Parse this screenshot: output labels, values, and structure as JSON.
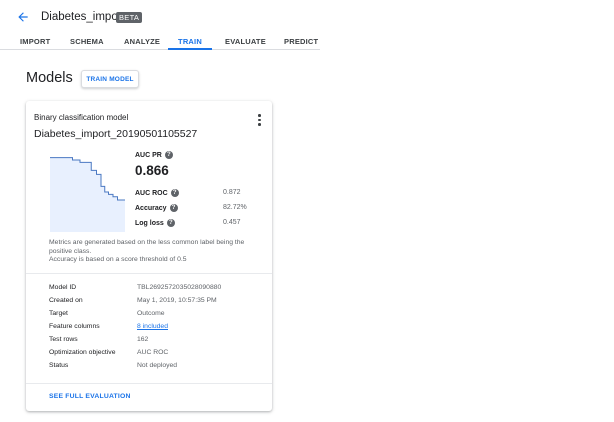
{
  "header": {
    "title": "Diabetes_import",
    "badge": "BETA",
    "back_icon": "arrow-back-icon"
  },
  "tabs": [
    {
      "label": "IMPORT",
      "active": false
    },
    {
      "label": "SCHEMA",
      "active": false
    },
    {
      "label": "ANALYZE",
      "active": false
    },
    {
      "label": "TRAIN",
      "active": true
    },
    {
      "label": "EVALUATE",
      "active": false
    },
    {
      "label": "PREDICT",
      "active": false
    }
  ],
  "colors": {
    "accent": "#1a73e8",
    "curve_fill": "#e8f0fe",
    "curve_line": "#4a78c2"
  },
  "page": {
    "heading": "Models",
    "train_button": "TRAIN MODEL"
  },
  "model_card": {
    "type": "Binary classification model",
    "name": "Diabetes_import_20190501105527",
    "more_icon": "more-vert-icon",
    "primary_metric": {
      "label": "AUC PR",
      "value": "0.866"
    },
    "metrics": [
      {
        "label": "AUC ROC",
        "value": "0.872"
      },
      {
        "label": "Accuracy",
        "value": "82.72%"
      },
      {
        "label": "Log loss",
        "value": "0.457"
      }
    ],
    "note_line1": "Metrics are generated based on the less common label being the positive class.",
    "note_line2": "Accuracy is based on a score threshold of 0.5",
    "details": [
      {
        "key": "Model ID",
        "value": "TBL2692572035028090880",
        "link": false
      },
      {
        "key": "Created on",
        "value": "May 1, 2019, 10:57:35 PM",
        "link": false
      },
      {
        "key": "Target",
        "value": "Outcome",
        "link": false
      },
      {
        "key": "Feature columns",
        "value": "8 included",
        "link": true
      },
      {
        "key": "Test rows",
        "value": "162",
        "link": false
      },
      {
        "key": "Optimization objective",
        "value": "AUC ROC",
        "link": false
      },
      {
        "key": "Status",
        "value": "Not deployed",
        "link": false
      }
    ],
    "footer_link": "SEE FULL EVALUATION"
  },
  "chart_data": {
    "type": "area",
    "title": "",
    "xlabel": "",
    "ylabel": "",
    "xlim": [
      0,
      1
    ],
    "ylim": [
      0,
      1
    ],
    "step": true,
    "x": [
      0.0,
      0.3,
      0.3,
      0.4,
      0.4,
      0.55,
      0.55,
      0.62,
      0.62,
      0.68,
      0.68,
      0.73,
      0.73,
      0.78,
      0.78,
      0.84,
      0.84,
      0.9,
      0.9,
      1.0
    ],
    "y": [
      0.93,
      0.93,
      0.9,
      0.9,
      0.87,
      0.87,
      0.77,
      0.77,
      0.72,
      0.72,
      0.57,
      0.57,
      0.5,
      0.5,
      0.47,
      0.47,
      0.44,
      0.44,
      0.4,
      0.4
    ]
  }
}
